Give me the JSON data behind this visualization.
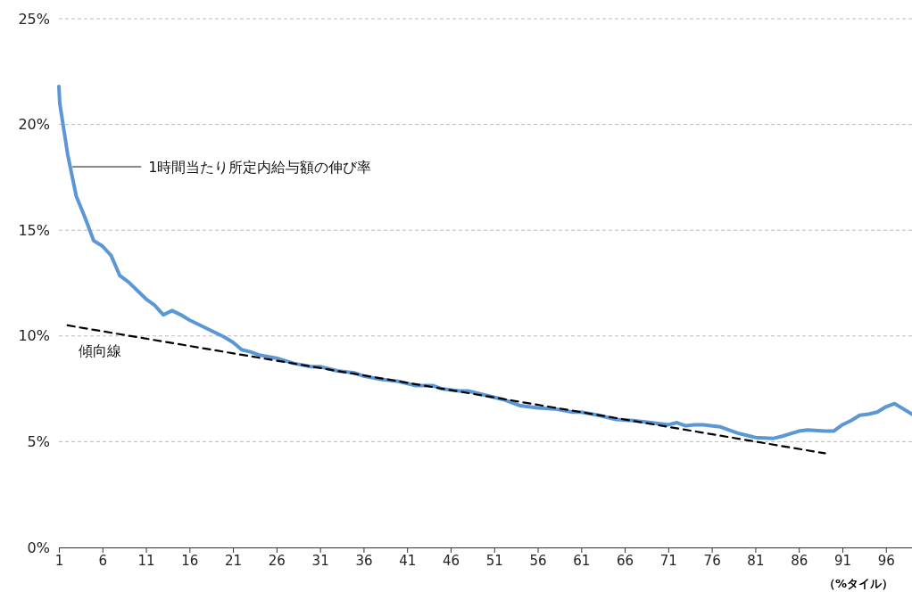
{
  "chart_data": {
    "type": "line",
    "xlabel": "（%タイル）",
    "xlim": [
      1,
      99
    ],
    "xticks": [
      1,
      6,
      11,
      16,
      21,
      26,
      31,
      36,
      41,
      46,
      51,
      56,
      61,
      66,
      71,
      76,
      81,
      86,
      91,
      96
    ],
    "ylim": [
      0,
      25
    ],
    "yticks": [
      {
        "value": 0,
        "label": "0%"
      },
      {
        "value": 5,
        "label": "5%"
      },
      {
        "value": 10,
        "label": "10%"
      },
      {
        "value": 15,
        "label": "15%"
      },
      {
        "value": 20,
        "label": "20%"
      },
      {
        "value": 25,
        "label": "25%"
      }
    ],
    "grid": "y",
    "series": [
      {
        "color": "#5b97d5",
        "line_style": "solid",
        "x": [
          1,
          1.1,
          2,
          3,
          4,
          5,
          6,
          7,
          8,
          9,
          10,
          11,
          12,
          13,
          14,
          15,
          16,
          17,
          18,
          19,
          20,
          21,
          22,
          23,
          24,
          26,
          28,
          30,
          31,
          33,
          35,
          36,
          38,
          40,
          42,
          44,
          45,
          47,
          48,
          50,
          52,
          54,
          56,
          58,
          60,
          61,
          63,
          65,
          67,
          69,
          71,
          72,
          73,
          74,
          75,
          77,
          79,
          80,
          81,
          83,
          84,
          86,
          87,
          89,
          90,
          91,
          92,
          93,
          94,
          95,
          96,
          97,
          98,
          99
        ],
        "values": [
          21.8,
          21.0,
          18.6,
          16.6,
          15.6,
          14.5,
          14.25,
          13.8,
          12.85,
          12.55,
          12.15,
          11.75,
          11.45,
          11.0,
          11.2,
          11.0,
          10.75,
          10.55,
          10.35,
          10.15,
          9.95,
          9.7,
          9.35,
          9.25,
          9.1,
          8.95,
          8.7,
          8.55,
          8.55,
          8.35,
          8.25,
          8.1,
          7.95,
          7.85,
          7.65,
          7.65,
          7.5,
          7.4,
          7.4,
          7.2,
          7.0,
          6.7,
          6.6,
          6.55,
          6.4,
          6.4,
          6.25,
          6.05,
          6.0,
          5.9,
          5.8,
          5.9,
          5.75,
          5.8,
          5.8,
          5.7,
          5.4,
          5.3,
          5.2,
          5.15,
          5.25,
          5.5,
          5.55,
          5.5,
          5.5,
          5.8,
          6.0,
          6.25,
          6.3,
          6.4,
          6.65,
          6.8,
          6.55,
          6.3
        ]
      },
      {
        "color": "#000000",
        "line_style": "dashed",
        "x": [
          2,
          89
        ],
        "values": [
          10.5,
          4.45
        ]
      }
    ],
    "annotations": [
      {
        "text": "1時間当たり所定内給与額の伸び率",
        "x": 2.25,
        "y": 18.0
      },
      "傾向線"
    ]
  }
}
